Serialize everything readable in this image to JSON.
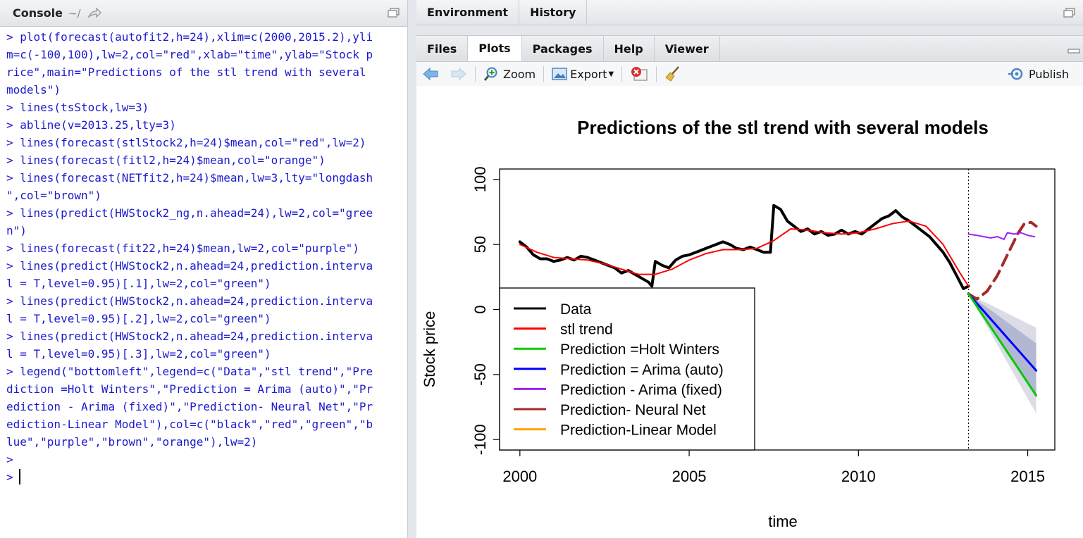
{
  "console": {
    "title": "Console",
    "path": "~/",
    "lines": [
      "> plot(forecast(autofit2,h=24),xlim=c(2000,2015.2),yli",
      "m=c(-100,100),lw=2,col=\"red\",xlab=\"time\",ylab=\"Stock p",
      "rice\",main=\"Predictions of the stl trend with several ",
      "models\")",
      "> lines(tsStock,lw=3)",
      "> abline(v=2013.25,lty=3)",
      "> lines(forecast(stlStock2,h=24)$mean,col=\"red\",lw=2)",
      "> lines(forecast(fitl2,h=24)$mean,col=\"orange\")",
      "> lines(forecast(NETfit2,h=24)$mean,lw=3,lty=\"longdash",
      "\",col=\"brown\")",
      "> lines(predict(HWStock2_ng,n.ahead=24),lw=2,col=\"gree",
      "n\")",
      "> lines(forecast(fit22,h=24)$mean,lw=2,col=\"purple\")",
      "> lines(predict(HWStock2,n.ahead=24,prediction.interva",
      "l = T,level=0.95)[.1],lw=2,col=\"green\")",
      "> lines(predict(HWStock2,n.ahead=24,prediction.interva",
      "l = T,level=0.95)[.2],lw=2,col=\"green\")",
      "> lines(predict(HWStock2,n.ahead=24,prediction.interva",
      "l = T,level=0.95)[.3],lw=2,col=\"green\")",
      "> legend(\"bottomleft\",legend=c(\"Data\",\"stl trend\",\"Pre",
      "diction =Holt Winters\",\"Prediction = Arima (auto)\",\"Pr",
      "ediction - Arima (fixed)\",\"Prediction- Neural Net\",\"Pr",
      "ediction-Linear Model\"),col=c(\"black\",\"red\",\"green\",\"b",
      "lue\",\"purple\",\"brown\",\"orange\"),lw=2)",
      ">",
      ">"
    ]
  },
  "env_tabs": [
    "Environment",
    "History"
  ],
  "plots_tabs": [
    "Files",
    "Plots",
    "Packages",
    "Help",
    "Viewer"
  ],
  "toolbar": {
    "zoom": "Zoom",
    "export": "Export",
    "publish": "Publish"
  },
  "chart_data": {
    "type": "line",
    "title": "Predictions of the stl trend with several models",
    "xlabel": "time",
    "ylabel": "Stock price",
    "xlim": [
      2000,
      2015.2
    ],
    "ylim": [
      -100,
      100
    ],
    "x_ticks": [
      2000,
      2005,
      2010,
      2015
    ],
    "y_ticks": [
      -100,
      -50,
      0,
      50,
      100
    ],
    "vline": 2013.25,
    "legend_position": "bottomleft",
    "legend": [
      {
        "label": "Data",
        "color": "#000000"
      },
      {
        "label": "stl trend",
        "color": "#ff0000"
      },
      {
        "label": "Prediction =Holt Winters",
        "color": "#00cc00"
      },
      {
        "label": "Prediction = Arima (auto)",
        "color": "#0000ff"
      },
      {
        "label": "Prediction - Arima (fixed)",
        "color": "#a020f0"
      },
      {
        "label": "Prediction- Neural Net",
        "color": "#a52a2a"
      },
      {
        "label": "Prediction-Linear Model",
        "color": "#ffa500"
      }
    ],
    "series": [
      {
        "key": "data",
        "color": "#000000",
        "width": 4,
        "points": [
          [
            2000.0,
            52
          ],
          [
            2000.2,
            48
          ],
          [
            2000.4,
            42
          ],
          [
            2000.6,
            39
          ],
          [
            2000.8,
            39
          ],
          [
            2001.0,
            37
          ],
          [
            2001.2,
            38
          ],
          [
            2001.4,
            40
          ],
          [
            2001.6,
            38
          ],
          [
            2001.8,
            41
          ],
          [
            2002.0,
            40
          ],
          [
            2002.2,
            38
          ],
          [
            2002.4,
            36
          ],
          [
            2002.6,
            34
          ],
          [
            2002.8,
            32
          ],
          [
            2003.0,
            28
          ],
          [
            2003.2,
            30
          ],
          [
            2003.4,
            27
          ],
          [
            2003.6,
            24
          ],
          [
            2003.8,
            21
          ],
          [
            2003.9,
            18
          ],
          [
            2004.0,
            37
          ],
          [
            2004.2,
            34
          ],
          [
            2004.4,
            32
          ],
          [
            2004.6,
            38
          ],
          [
            2004.8,
            41
          ],
          [
            2005.0,
            42
          ],
          [
            2005.2,
            44
          ],
          [
            2005.4,
            46
          ],
          [
            2005.6,
            48
          ],
          [
            2005.8,
            50
          ],
          [
            2006.0,
            52
          ],
          [
            2006.2,
            50
          ],
          [
            2006.4,
            47
          ],
          [
            2006.6,
            46
          ],
          [
            2006.8,
            48
          ],
          [
            2007.0,
            46
          ],
          [
            2007.2,
            44
          ],
          [
            2007.4,
            44
          ],
          [
            2007.5,
            80
          ],
          [
            2007.7,
            77
          ],
          [
            2007.9,
            68
          ],
          [
            2008.1,
            64
          ],
          [
            2008.3,
            60
          ],
          [
            2008.5,
            62
          ],
          [
            2008.7,
            58
          ],
          [
            2008.9,
            60
          ],
          [
            2009.1,
            57
          ],
          [
            2009.3,
            58
          ],
          [
            2009.5,
            61
          ],
          [
            2009.7,
            58
          ],
          [
            2009.9,
            60
          ],
          [
            2010.1,
            58
          ],
          [
            2010.3,
            62
          ],
          [
            2010.5,
            66
          ],
          [
            2010.7,
            70
          ],
          [
            2010.9,
            72
          ],
          [
            2011.1,
            76
          ],
          [
            2011.3,
            71
          ],
          [
            2011.5,
            68
          ],
          [
            2011.7,
            64
          ],
          [
            2011.9,
            60
          ],
          [
            2012.1,
            56
          ],
          [
            2012.3,
            50
          ],
          [
            2012.5,
            44
          ],
          [
            2012.7,
            36
          ],
          [
            2012.9,
            26
          ],
          [
            2013.1,
            16
          ],
          [
            2013.25,
            18
          ]
        ]
      },
      {
        "key": "trend",
        "color": "#ff0000",
        "width": 2,
        "points": [
          [
            2000.0,
            50
          ],
          [
            2000.5,
            44
          ],
          [
            2001.0,
            40
          ],
          [
            2001.5,
            39
          ],
          [
            2002.0,
            38
          ],
          [
            2002.5,
            35
          ],
          [
            2003.0,
            31
          ],
          [
            2003.5,
            27
          ],
          [
            2004.0,
            27
          ],
          [
            2004.5,
            31
          ],
          [
            2005.0,
            38
          ],
          [
            2005.5,
            43
          ],
          [
            2006.0,
            46
          ],
          [
            2006.5,
            46
          ],
          [
            2007.0,
            47
          ],
          [
            2007.5,
            53
          ],
          [
            2008.0,
            62
          ],
          [
            2008.5,
            61
          ],
          [
            2009.0,
            59
          ],
          [
            2009.5,
            58
          ],
          [
            2010.0,
            59
          ],
          [
            2010.5,
            62
          ],
          [
            2011.0,
            66
          ],
          [
            2011.5,
            68
          ],
          [
            2012.0,
            64
          ],
          [
            2012.5,
            50
          ],
          [
            2013.0,
            28
          ],
          [
            2013.25,
            18
          ]
        ]
      },
      {
        "key": "neural",
        "color": "#a52a2a",
        "width": 4,
        "dash": "16,9",
        "points": [
          [
            2013.25,
            12
          ],
          [
            2013.5,
            8
          ],
          [
            2013.8,
            14
          ],
          [
            2014.1,
            26
          ],
          [
            2014.4,
            42
          ],
          [
            2014.7,
            58
          ],
          [
            2014.9,
            66
          ],
          [
            2015.1,
            67
          ],
          [
            2015.25,
            64
          ]
        ]
      },
      {
        "key": "arima_fixed",
        "color": "#a020f0",
        "width": 2,
        "points": [
          [
            2013.25,
            58
          ],
          [
            2013.5,
            57
          ],
          [
            2013.7,
            56
          ],
          [
            2013.9,
            55
          ],
          [
            2014.1,
            56
          ],
          [
            2014.3,
            54
          ],
          [
            2014.4,
            59
          ],
          [
            2014.6,
            58
          ],
          [
            2014.8,
            59
          ],
          [
            2015.0,
            57
          ],
          [
            2015.2,
            56
          ]
        ]
      },
      {
        "key": "arima_auto",
        "color": "#0000ff",
        "width": 3,
        "points": [
          [
            2013.25,
            12
          ],
          [
            2015.25,
            -47
          ]
        ]
      },
      {
        "key": "holt_winters",
        "color": "#00cc00",
        "width": 3,
        "points": [
          [
            2013.25,
            12
          ],
          [
            2015.25,
            -66
          ]
        ]
      }
    ],
    "bands": [
      {
        "color": "#dcdce6",
        "upper": [
          [
            2013.25,
            12
          ],
          [
            2015.25,
            -14
          ]
        ],
        "lower": [
          [
            2013.25,
            12
          ],
          [
            2015.25,
            -80
          ]
        ]
      },
      {
        "color": "#b3b8d2",
        "upper": [
          [
            2013.25,
            12
          ],
          [
            2015.25,
            -26
          ]
        ],
        "lower": [
          [
            2013.25,
            12
          ],
          [
            2015.25,
            -68
          ]
        ]
      }
    ]
  }
}
